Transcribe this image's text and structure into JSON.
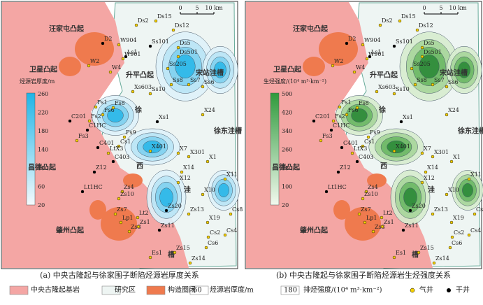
{
  "panels": [
    {
      "caption": "(a) 中央古隆起与徐家围子断陷烃源岩厚度关系",
      "legend_title": "烃源岩厚度/m",
      "legend_ticks": [
        "260",
        "220",
        "180",
        "140",
        "100",
        "60",
        "20"
      ],
      "scale": [
        "0",
        "5",
        "10 km"
      ]
    },
    {
      "caption": "(b) 中央古隆起与徐家围子断陷烃源岩生烃强度关系",
      "legend_title": "生烃强度/(10⁴ m³·km⁻²)",
      "legend_ticks": [
        "500",
        "420",
        "340",
        "260",
        "180",
        "100",
        "20"
      ],
      "scale": [
        "0",
        "5",
        "10 km"
      ]
    }
  ],
  "places": [
    "汪家屯凸起",
    "卫星凸起",
    "升平凸起",
    "宋站洼槽",
    "徐东洼槽",
    "昌德凸起",
    "肇州凸起",
    "徐",
    "西",
    "洼",
    "槽"
  ],
  "wells": [
    "Ds2",
    "Ds15",
    "Ds12",
    "Ss101",
    "W904",
    "Ds5",
    "Ls1",
    "Ds501",
    "W901",
    "D2",
    "W2",
    "W4",
    "Ss205",
    "Ss8",
    "Ss7",
    "Ss6",
    "Ss10",
    "Xs603",
    "Fs1",
    "Fs6",
    "Fs8",
    "Xs1",
    "C201",
    "Fs2",
    "C1HC",
    "Fs3",
    "Fs9",
    "X24",
    "C401",
    "Cs1",
    "LtX3",
    "X401",
    "X7",
    "X301",
    "C403",
    "X1",
    "Z12",
    "X14",
    "X12",
    "X11",
    "Lt1HC",
    "Zs4",
    "Zs10",
    "X10",
    "Zs20",
    "Zs13",
    "Zs7",
    "Lp1",
    "Lt2",
    "Zs3",
    "Zs1",
    "X19",
    "Zs11",
    "Cs2",
    "Cs4",
    "Cs6",
    "Cs8",
    "Es1",
    "Zs15",
    "Zs14"
  ],
  "legend": {
    "items": [
      "中央古隆起基岩",
      "研究区",
      "构造圈闭",
      "60",
      "烃源岩厚度/m",
      "180",
      "排烃强度/(10⁴ m³·km⁻²)",
      "气井",
      "干井"
    ]
  }
}
